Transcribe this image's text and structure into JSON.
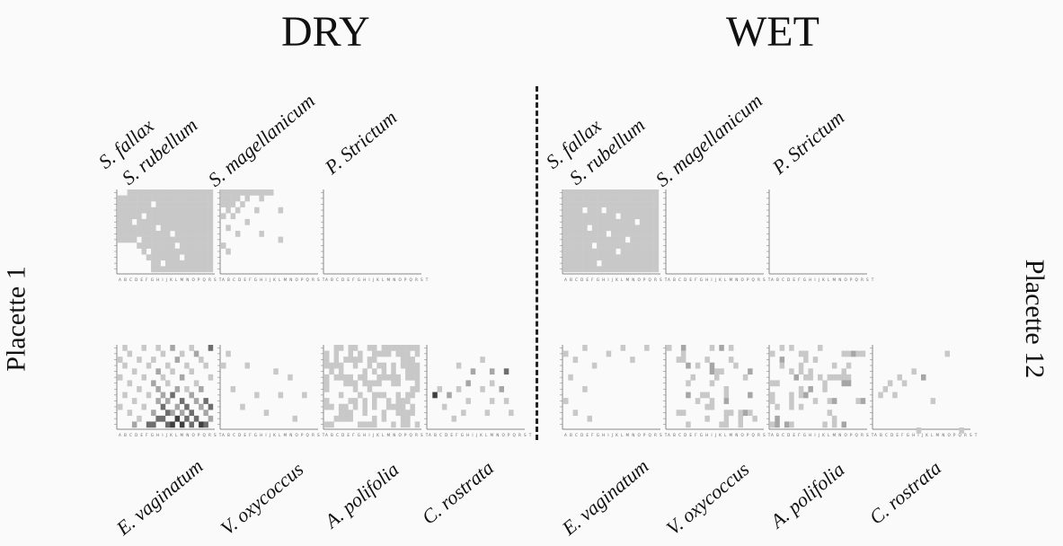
{
  "headers": {
    "dry": "DRY",
    "wet": "WET"
  },
  "side_labels": {
    "left": "Placette 1",
    "right": "Placette 12"
  },
  "species_top": [
    "S. fallax",
    "S. rubellum",
    "S. magellanicum",
    "P. Strictum"
  ],
  "species_bottom": [
    "E. vaginatum",
    "V. oxycoccus",
    "A. polifolia",
    "C. rostrata"
  ],
  "axis_letters": "A B C D E F G H I J K L M N O P Q R S T",
  "colors": {
    "light": "#c8c8c8",
    "mid": "#a6a6a6",
    "dark": "#6e6e6e",
    "darkest": "#3f3f3f",
    "axis": "#888888"
  },
  "grids": [
    {
      "panel": "DRY",
      "row": "top",
      "species": "S. fallax / S. rubellum",
      "fill": "dense-upper-right",
      "holes": [
        [
          3,
          5
        ],
        [
          4,
          8
        ],
        [
          5,
          4
        ],
        [
          6,
          10
        ],
        [
          7,
          2
        ],
        [
          8,
          6
        ],
        [
          9,
          12
        ],
        [
          11,
          7
        ],
        [
          10,
          15
        ],
        [
          13,
          11
        ],
        [
          12,
          9
        ]
      ]
    },
    {
      "panel": "DRY",
      "row": "top",
      "species": "S. magellanicum",
      "fill": "sparse",
      "cells": [
        [
          0,
          0
        ],
        [
          1,
          0
        ],
        [
          2,
          0
        ],
        [
          3,
          0
        ],
        [
          4,
          0
        ],
        [
          5,
          0
        ],
        [
          6,
          0
        ],
        [
          7,
          0
        ],
        [
          8,
          0
        ],
        [
          9,
          0
        ],
        [
          10,
          0
        ],
        [
          0,
          1
        ],
        [
          1,
          1
        ],
        [
          2,
          1
        ],
        [
          3,
          1
        ],
        [
          5,
          1
        ],
        [
          8,
          1
        ],
        [
          0,
          2
        ],
        [
          1,
          2
        ],
        [
          2,
          2
        ],
        [
          4,
          2
        ],
        [
          1,
          3
        ],
        [
          3,
          3
        ],
        [
          7,
          3
        ],
        [
          12,
          3
        ],
        [
          0,
          4
        ],
        [
          2,
          4
        ],
        [
          5,
          5
        ],
        [
          1,
          6
        ],
        [
          8,
          7
        ],
        [
          3,
          7
        ],
        [
          12,
          8
        ],
        [
          0,
          9
        ],
        [
          1,
          10
        ]
      ]
    },
    {
      "panel": "DRY",
      "row": "top",
      "species": "P. Strictum",
      "fill": "none",
      "cells": []
    },
    {
      "panel": "DRY",
      "row": "bottom",
      "species": "E. vaginatum",
      "fill": "scattered-dark",
      "cells": [
        [
          1,
          0,
          1
        ],
        [
          5,
          0,
          1
        ],
        [
          8,
          0,
          1
        ],
        [
          11,
          0,
          2
        ],
        [
          15,
          0,
          1
        ],
        [
          19,
          0,
          3
        ],
        [
          2,
          1,
          1
        ],
        [
          9,
          1,
          1
        ],
        [
          13,
          1,
          1
        ],
        [
          16,
          1,
          2
        ],
        [
          0,
          2,
          1
        ],
        [
          4,
          2,
          1
        ],
        [
          7,
          2,
          1
        ],
        [
          12,
          2,
          2
        ],
        [
          17,
          2,
          1
        ],
        [
          1,
          3,
          1
        ],
        [
          6,
          3,
          1
        ],
        [
          10,
          3,
          1
        ],
        [
          14,
          3,
          1
        ],
        [
          18,
          3,
          1
        ],
        [
          3,
          4,
          1
        ],
        [
          8,
          4,
          2
        ],
        [
          11,
          4,
          1
        ],
        [
          15,
          4,
          1
        ],
        [
          0,
          5,
          1
        ],
        [
          5,
          5,
          1
        ],
        [
          9,
          5,
          1
        ],
        [
          13,
          5,
          2
        ],
        [
          19,
          5,
          1
        ],
        [
          2,
          6,
          1
        ],
        [
          7,
          6,
          2
        ],
        [
          10,
          6,
          1
        ],
        [
          16,
          6,
          1
        ],
        [
          4,
          7,
          1
        ],
        [
          8,
          7,
          2
        ],
        [
          12,
          7,
          2
        ],
        [
          14,
          7,
          1
        ],
        [
          17,
          7,
          2
        ],
        [
          1,
          8,
          1
        ],
        [
          6,
          8,
          1
        ],
        [
          9,
          8,
          2
        ],
        [
          11,
          8,
          3
        ],
        [
          15,
          8,
          2
        ],
        [
          3,
          9,
          1
        ],
        [
          8,
          9,
          2
        ],
        [
          10,
          9,
          2
        ],
        [
          13,
          9,
          3
        ],
        [
          16,
          9,
          2
        ],
        [
          18,
          9,
          3
        ],
        [
          0,
          10,
          1
        ],
        [
          5,
          10,
          1
        ],
        [
          9,
          10,
          3
        ],
        [
          12,
          10,
          2
        ],
        [
          14,
          10,
          3
        ],
        [
          17,
          10,
          2
        ],
        [
          19,
          10,
          3
        ],
        [
          2,
          11,
          1
        ],
        [
          7,
          11,
          2
        ],
        [
          10,
          11,
          3
        ],
        [
          11,
          11,
          2
        ],
        [
          13,
          11,
          2
        ],
        [
          15,
          11,
          3
        ],
        [
          18,
          11,
          2
        ],
        [
          4,
          12,
          1
        ],
        [
          8,
          12,
          3
        ],
        [
          9,
          12,
          3
        ],
        [
          12,
          12,
          4
        ],
        [
          14,
          12,
          3
        ],
        [
          16,
          12,
          3
        ],
        [
          19,
          12,
          2
        ],
        [
          3,
          13,
          2
        ],
        [
          6,
          13,
          3
        ],
        [
          7,
          13,
          3
        ],
        [
          10,
          13,
          3
        ],
        [
          11,
          13,
          4
        ],
        [
          13,
          13,
          4
        ],
        [
          15,
          13,
          3
        ],
        [
          17,
          13,
          4
        ],
        [
          18,
          13,
          3
        ]
      ]
    },
    {
      "panel": "DRY",
      "row": "bottom",
      "species": "V. oxycoccus",
      "fill": "sparse",
      "cells": [
        [
          1,
          1,
          1
        ],
        [
          0,
          3,
          1
        ],
        [
          5,
          3,
          1
        ],
        [
          11,
          4,
          1
        ],
        [
          14,
          5,
          1
        ],
        [
          2,
          7,
          1
        ],
        [
          7,
          8,
          1
        ],
        [
          12,
          8,
          1
        ],
        [
          17,
          8,
          1
        ],
        [
          4,
          10,
          1
        ],
        [
          9,
          11,
          1
        ],
        [
          15,
          12,
          1
        ]
      ]
    },
    {
      "panel": "DRY",
      "row": "bottom",
      "species": "A. polifolia",
      "fill": "dense-scattered",
      "cells": []
    },
    {
      "panel": "DRY",
      "row": "bottom",
      "species": "C. rostrata",
      "fill": "sparse-dark",
      "cells": [
        [
          11,
          2,
          1
        ],
        [
          6,
          3,
          1
        ],
        [
          9,
          4,
          2
        ],
        [
          13,
          4,
          2
        ],
        [
          16,
          4,
          3
        ],
        [
          8,
          6,
          2
        ],
        [
          13,
          6,
          1
        ],
        [
          2,
          7,
          1
        ],
        [
          6,
          7,
          1
        ],
        [
          11,
          7,
          1
        ],
        [
          15,
          7,
          2
        ],
        [
          1,
          8,
          4
        ],
        [
          4,
          8,
          2
        ],
        [
          8,
          9,
          1
        ],
        [
          13,
          9,
          1
        ],
        [
          16,
          9,
          1
        ],
        [
          3,
          10,
          1
        ],
        [
          7,
          11,
          1
        ],
        [
          12,
          11,
          1
        ],
        [
          17,
          11,
          1
        ],
        [
          5,
          12,
          1
        ]
      ]
    },
    {
      "panel": "WET",
      "row": "top",
      "species": "S. fallax / S. rubellum",
      "fill": "dense-all",
      "holes": [
        [
          4,
          3
        ],
        [
          8,
          3
        ],
        [
          11,
          4
        ],
        [
          5,
          6
        ],
        [
          9,
          7
        ],
        [
          13,
          8
        ],
        [
          6,
          9
        ],
        [
          11,
          10
        ],
        [
          15,
          5
        ],
        [
          7,
          12
        ]
      ]
    },
    {
      "panel": "WET",
      "row": "top",
      "species": "S. magellanicum",
      "fill": "none",
      "cells": []
    },
    {
      "panel": "WET",
      "row": "top",
      "species": "P. Strictum",
      "fill": "none",
      "cells": []
    },
    {
      "panel": "WET",
      "row": "bottom",
      "species": "E. vaginatum",
      "fill": "sparse",
      "cells": [
        [
          4,
          0,
          1
        ],
        [
          12,
          0,
          1
        ],
        [
          17,
          0,
          1
        ],
        [
          0,
          1,
          1
        ],
        [
          9,
          1,
          1
        ],
        [
          2,
          2,
          1
        ],
        [
          14,
          2,
          1
        ],
        [
          6,
          3,
          1
        ],
        [
          1,
          5,
          1
        ],
        [
          4,
          7,
          1
        ],
        [
          0,
          9,
          1
        ],
        [
          2,
          11,
          1
        ],
        [
          5,
          12,
          1
        ]
      ]
    },
    {
      "panel": "WET",
      "row": "bottom",
      "species": "V. oxycoccus",
      "fill": "scattered",
      "cells": []
    },
    {
      "panel": "WET",
      "row": "bottom",
      "species": "A. polifolia",
      "fill": "scattered",
      "cells": []
    },
    {
      "panel": "WET",
      "row": "bottom",
      "species": "C. rostrata",
      "fill": "sparse",
      "cells": [
        [
          15,
          1,
          1
        ],
        [
          8,
          4,
          1
        ],
        [
          5,
          5,
          1
        ],
        [
          10,
          5,
          2
        ],
        [
          3,
          6,
          1
        ],
        [
          6,
          6,
          1
        ],
        [
          2,
          7,
          1
        ],
        [
          1,
          8,
          1
        ],
        [
          4,
          8,
          1
        ],
        [
          12,
          9,
          1
        ],
        [
          9,
          14,
          1
        ],
        [
          18,
          14,
          1
        ]
      ]
    }
  ]
}
